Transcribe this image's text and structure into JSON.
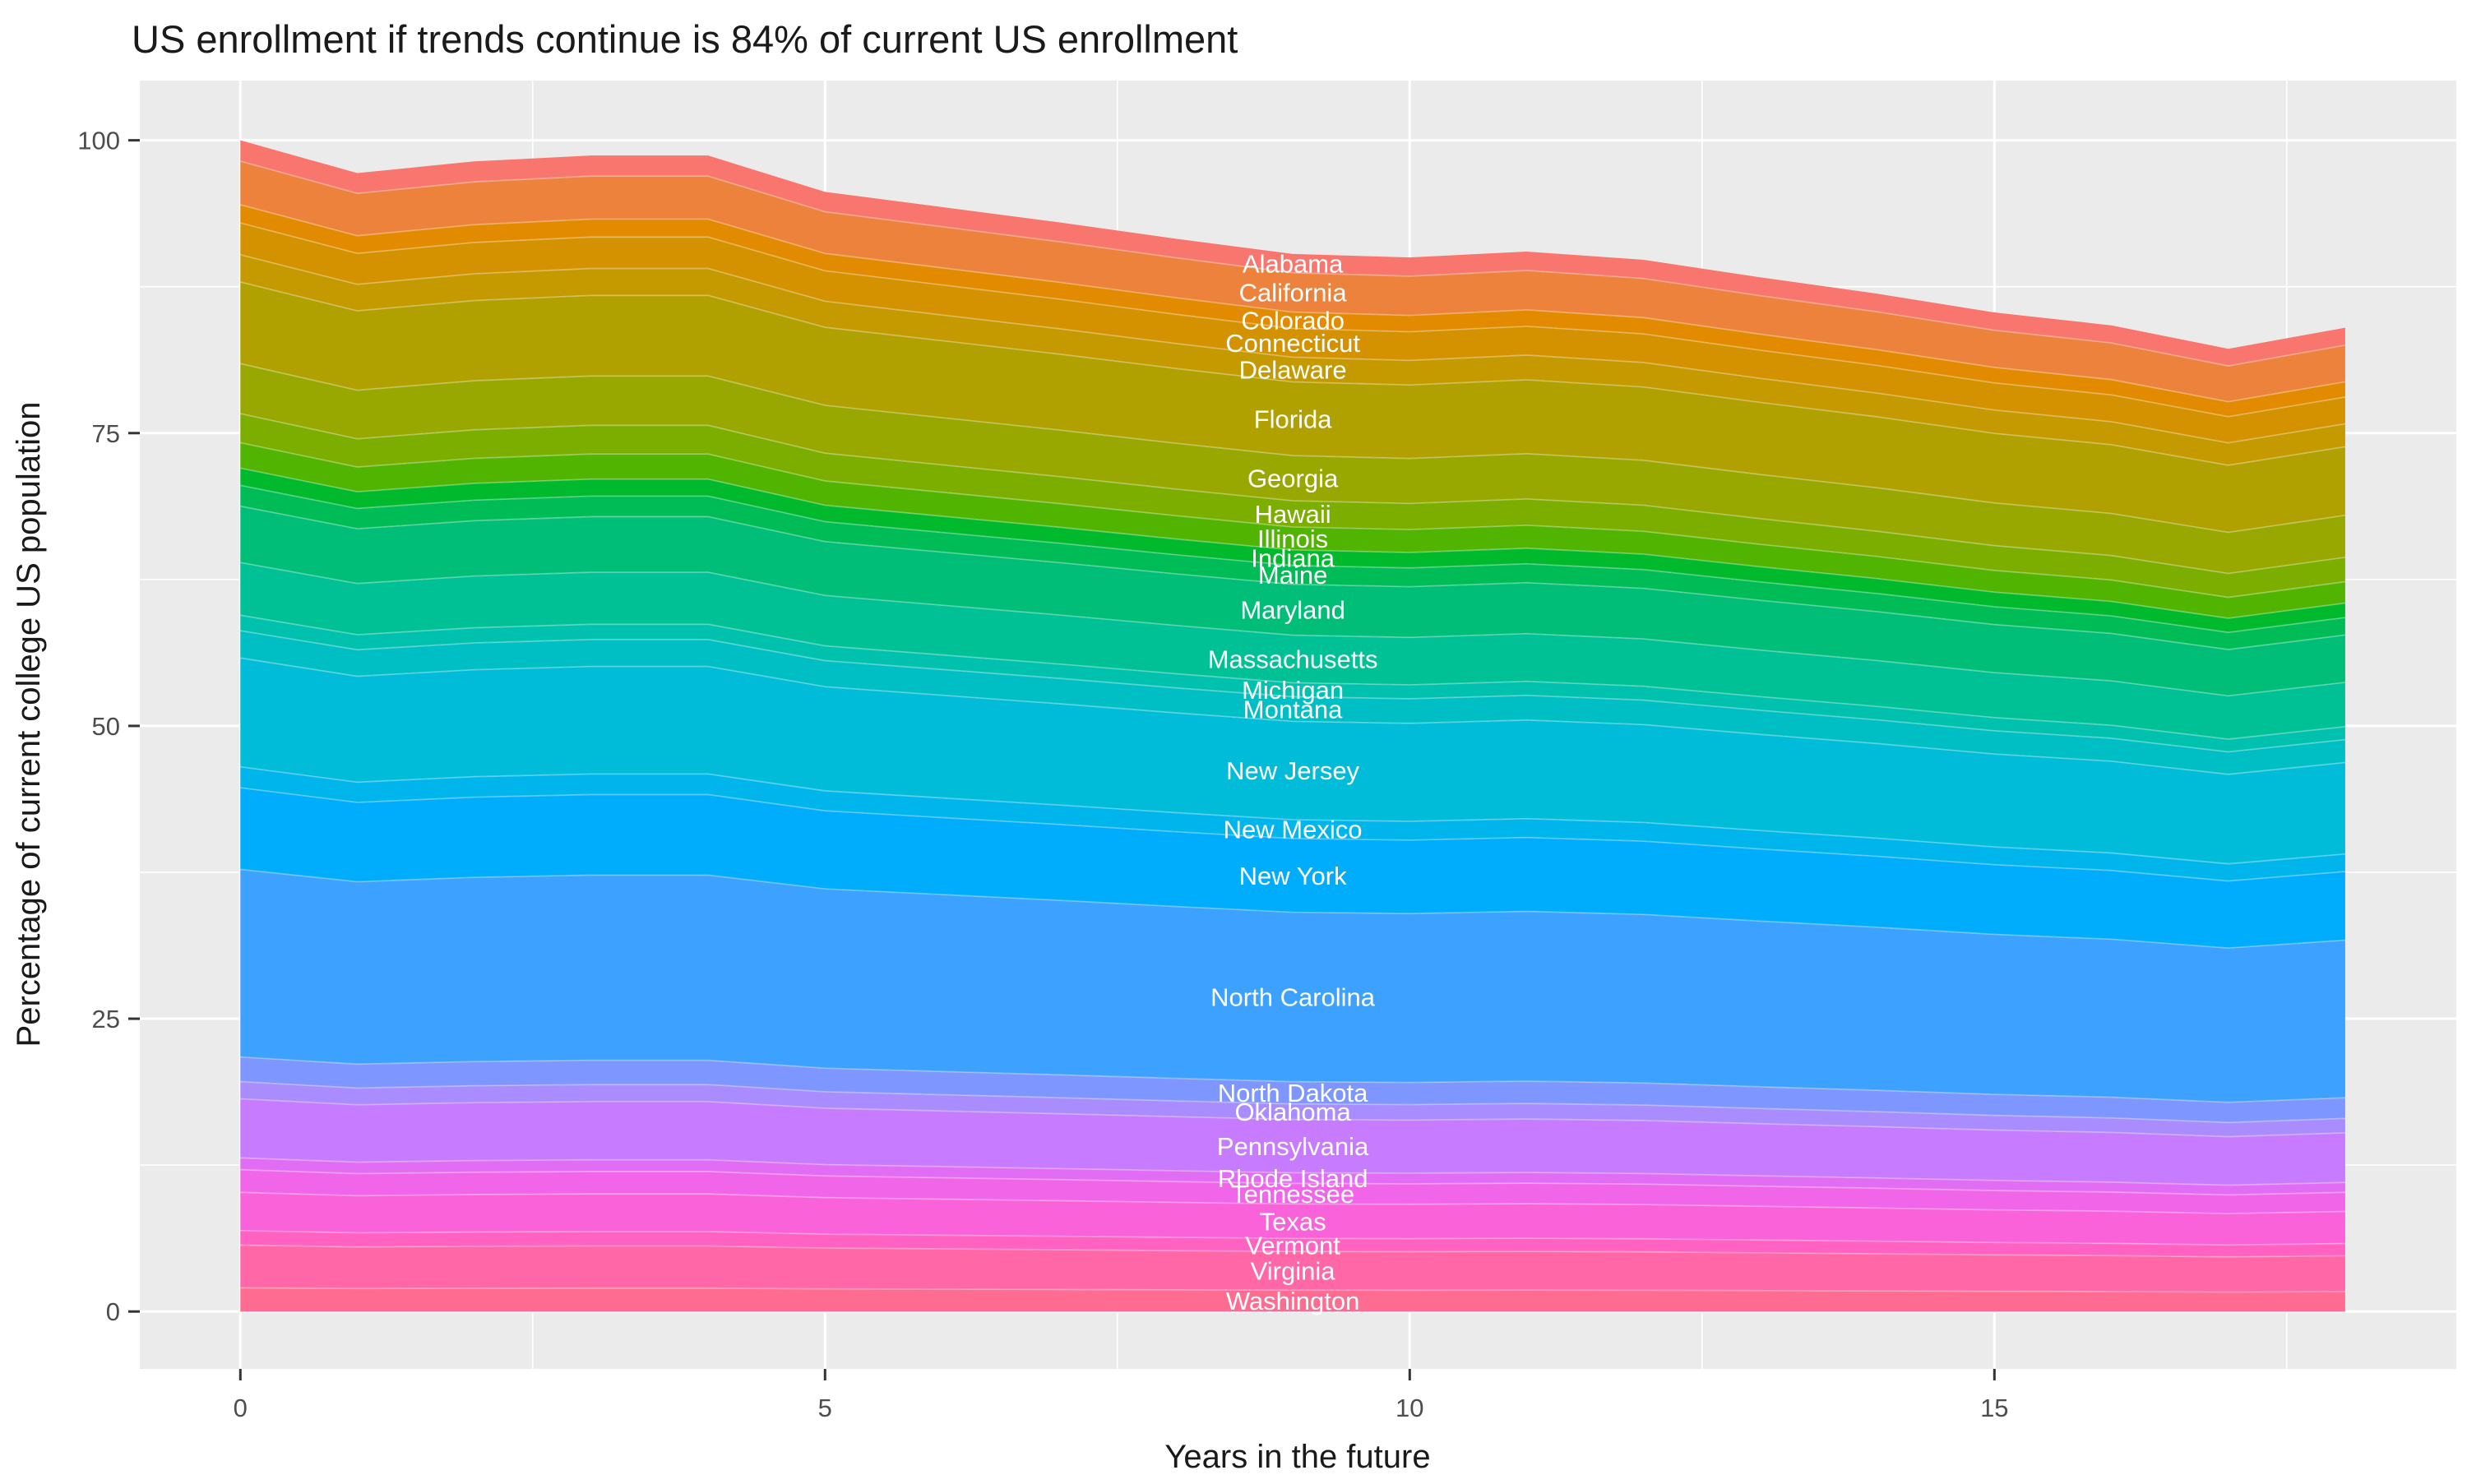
{
  "title": "US enrollment if trends continue is 84% of current US enrollment",
  "panel": {
    "bg_color": "#EBEBEB",
    "grid_color": "#FFFFFF",
    "tick_mark_color": "#333333",
    "tick_label_color": "#4D4D4D",
    "state_label_color": "#FFFFFF"
  },
  "chart_data": {
    "type": "area",
    "stacked": true,
    "title": "US enrollment if trends continue is 84% of current US enrollment",
    "xlabel": "Years in the future",
    "ylabel": "Percentage of current college US population",
    "x": [
      0,
      1,
      2,
      3,
      4,
      5,
      6,
      7,
      8,
      9,
      10,
      11,
      12,
      13,
      14,
      15,
      16,
      17,
      18
    ],
    "x_ticks": [
      0,
      5,
      10,
      15
    ],
    "x_minor_ticks": [
      2.5,
      7.5,
      12.5,
      17.5
    ],
    "y_ticks": [
      0,
      25,
      50,
      75,
      100
    ],
    "y_minor_ticks": [
      12.5,
      37.5,
      62.5,
      87.5
    ],
    "xlim": [
      -0.86,
      18.95
    ],
    "ylim": [
      -4.9,
      105.1
    ],
    "grid": true,
    "legend_position": "none",
    "labels_at_x": 9,
    "totals_pct": [
      100,
      97.2,
      98.2,
      98.7,
      98.7,
      95.6,
      94.3,
      93.0,
      91.6,
      90.3,
      90.0,
      90.5,
      89.8,
      88.3,
      86.9,
      85.3,
      84.2,
      82.2,
      84.0
    ],
    "series_rule": "value[state][year] = start_share_pct * totals_pct[year] / 100; stacked top-to-bottom in listed order",
    "series": [
      {
        "name": "Alabama",
        "color": "#F8766D",
        "start_share_pct": 1.78
      },
      {
        "name": "California",
        "color": "#EC823C",
        "start_share_pct": 3.72
      },
      {
        "name": "Colorado",
        "color": "#E28A00",
        "start_share_pct": 1.55
      },
      {
        "name": "Connecticut",
        "color": "#D49200",
        "start_share_pct": 2.72
      },
      {
        "name": "Delaware",
        "color": "#C49A00",
        "start_share_pct": 2.33
      },
      {
        "name": "Florida",
        "color": "#B0A100",
        "start_share_pct": 6.97
      },
      {
        "name": "Georgia",
        "color": "#99A800",
        "start_share_pct": 4.27
      },
      {
        "name": "Hawaii",
        "color": "#7CAE00",
        "start_share_pct": 2.48
      },
      {
        "name": "Illinois",
        "color": "#50B400",
        "start_share_pct": 2.17
      },
      {
        "name": "Indiana",
        "color": "#00B92D",
        "start_share_pct": 1.47
      },
      {
        "name": "Maine",
        "color": "#00BC56",
        "start_share_pct": 1.78
      },
      {
        "name": "Maryland",
        "color": "#00BE78",
        "start_share_pct": 4.81
      },
      {
        "name": "Massachusetts",
        "color": "#00C095",
        "start_share_pct": 4.5
      },
      {
        "name": "Michigan",
        "color": "#00C1AD",
        "start_share_pct": 1.32
      },
      {
        "name": "Montana",
        "color": "#00BFC4",
        "start_share_pct": 2.33
      },
      {
        "name": "New Jersey",
        "color": "#00BCD8",
        "start_share_pct": 9.3
      },
      {
        "name": "New Mexico",
        "color": "#00B5EC",
        "start_share_pct": 1.78
      },
      {
        "name": "New York",
        "color": "#00ACFC",
        "start_share_pct": 6.97
      },
      {
        "name": "North Carolina",
        "color": "#3DA1FF",
        "start_share_pct": 16.02
      },
      {
        "name": "North Dakota",
        "color": "#7E96FF",
        "start_share_pct": 2.1
      },
      {
        "name": "Oklahoma",
        "color": "#A98DFF",
        "start_share_pct": 1.47
      },
      {
        "name": "Pennsylvania",
        "color": "#C77CFF",
        "start_share_pct": 5.04
      },
      {
        "name": "Rhode Island",
        "color": "#E26DF5",
        "start_share_pct": 1.01
      },
      {
        "name": "Tennessee",
        "color": "#F166E8",
        "start_share_pct": 1.94
      },
      {
        "name": "Texas",
        "color": "#FA62D9",
        "start_share_pct": 3.26
      },
      {
        "name": "Vermont",
        "color": "#FF62C1",
        "start_share_pct": 1.24
      },
      {
        "name": "Virginia",
        "color": "#FF67A7",
        "start_share_pct": 3.65
      },
      {
        "name": "Washington",
        "color": "#FF6C91",
        "start_share_pct": 2.02
      }
    ]
  }
}
